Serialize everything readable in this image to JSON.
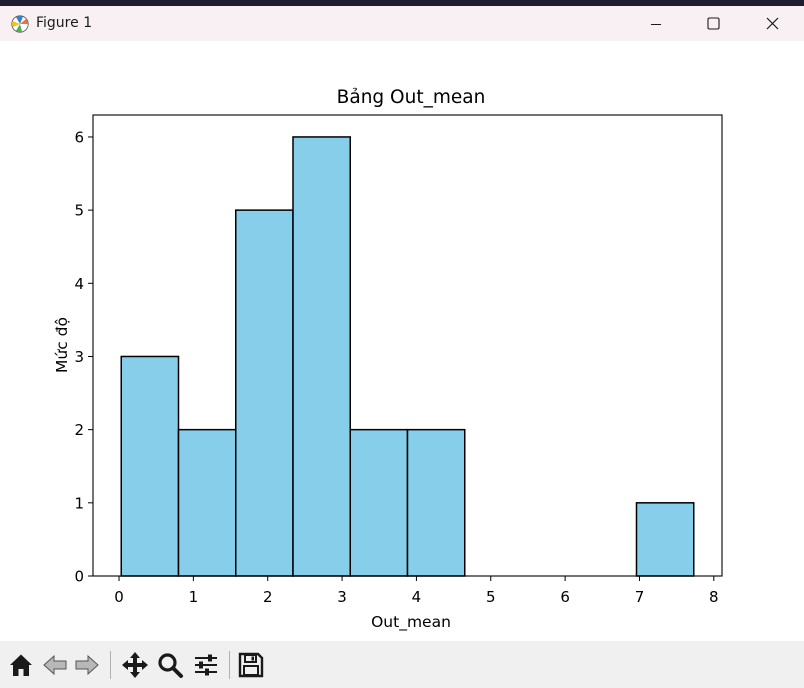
{
  "window": {
    "title": "Figure 1",
    "icons": {
      "app": "matplotlib-logo-icon",
      "minimize": "minimize-icon",
      "maximize": "maximize-icon",
      "close": "close-icon"
    }
  },
  "toolbar": {
    "buttons": [
      {
        "name": "home-button",
        "icon": "home-icon"
      },
      {
        "name": "back-button",
        "icon": "back-arrow-icon"
      },
      {
        "name": "forward-button",
        "icon": "forward-arrow-icon"
      },
      {
        "name": "pan-button",
        "icon": "move-icon"
      },
      {
        "name": "zoom-button",
        "icon": "magnifier-icon"
      },
      {
        "name": "configure-subplots-button",
        "icon": "sliders-icon"
      },
      {
        "name": "save-button",
        "icon": "floppy-disk-icon"
      }
    ]
  },
  "chart_data": {
    "type": "bar",
    "title": "Bảng Out_mean",
    "xlabel": "Out_mean",
    "ylabel": "Mức độ",
    "bin_edges": [
      0.03,
      0.8,
      1.57,
      2.34,
      3.11,
      3.88,
      4.65,
      5.42,
      6.19,
      6.96,
      7.73
    ],
    "counts": [
      3,
      2,
      5,
      6,
      2,
      2,
      0,
      0,
      0,
      1
    ],
    "xlim": [
      -0.35,
      8.11
    ],
    "ylim": [
      0,
      6.3
    ],
    "xticks": [
      "0",
      "1",
      "2",
      "3",
      "4",
      "5",
      "6",
      "7",
      "8"
    ],
    "yticks": [
      "0",
      "1",
      "2",
      "3",
      "4",
      "5",
      "6"
    ],
    "bar_color": "#87ceeb",
    "edge_color": "#000000",
    "grid": false
  }
}
